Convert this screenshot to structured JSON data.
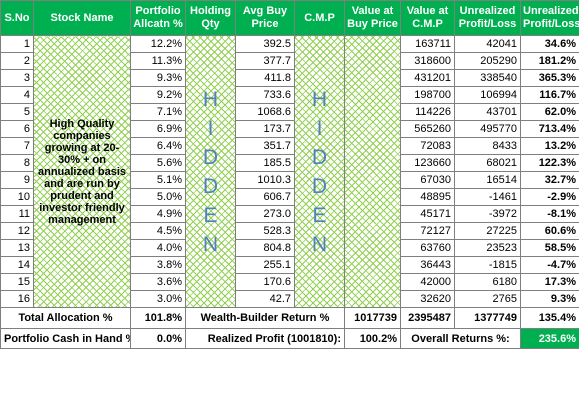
{
  "headers": {
    "sno": "S.No",
    "stock_name": "Stock Name",
    "portfolio_alloc": "Portfolio Allcatn %",
    "holding_qty": "Holding Qty",
    "avg_buy_price": "Avg Buy Price",
    "cmp": "C.M.P",
    "value_buy": "Value at Buy Price",
    "value_cmp": "Value at C.M.P",
    "unrealized_pl": "Unrealized Profit/Loss",
    "unrealized_pl_pct": "Unrealized Profit/Loss"
  },
  "description": "High Quality companies growing at 20-30% + on annualized basis and are run by prudent and investor friendly management",
  "hidden_word": [
    "H",
    "I",
    "D",
    "D",
    "E",
    "N"
  ],
  "rows": [
    {
      "sno": "1",
      "alloc": "12.2%",
      "avg": "392.5",
      "vcmp": "163711",
      "pl": "42041",
      "plpct": "34.6%",
      "sign": "pos"
    },
    {
      "sno": "2",
      "alloc": "11.3%",
      "avg": "377.7",
      "vcmp": "318600",
      "pl": "205290",
      "plpct": "181.2%",
      "sign": "pos"
    },
    {
      "sno": "3",
      "alloc": "9.3%",
      "avg": "411.8",
      "vcmp": "431201",
      "pl": "338540",
      "plpct": "365.3%",
      "sign": "pos"
    },
    {
      "sno": "4",
      "alloc": "9.2%",
      "avg": "733.6",
      "vcmp": "198700",
      "pl": "106994",
      "plpct": "116.7%",
      "sign": "pos"
    },
    {
      "sno": "5",
      "alloc": "7.1%",
      "avg": "1068.6",
      "vcmp": "114226",
      "pl": "43701",
      "plpct": "62.0%",
      "sign": "pos"
    },
    {
      "sno": "6",
      "alloc": "6.9%",
      "avg": "173.7",
      "vcmp": "565260",
      "pl": "495770",
      "plpct": "713.4%",
      "sign": "pos"
    },
    {
      "sno": "7",
      "alloc": "6.4%",
      "avg": "351.7",
      "vcmp": "72083",
      "pl": "8433",
      "plpct": "13.2%",
      "sign": "pos"
    },
    {
      "sno": "8",
      "alloc": "5.6%",
      "avg": "185.5",
      "vcmp": "123660",
      "pl": "68021",
      "plpct": "122.3%",
      "sign": "pos"
    },
    {
      "sno": "9",
      "alloc": "5.1%",
      "avg": "1010.3",
      "vcmp": "67030",
      "pl": "16514",
      "plpct": "32.7%",
      "sign": "pos"
    },
    {
      "sno": "10",
      "alloc": "5.0%",
      "avg": "606.7",
      "vcmp": "48895",
      "pl": "-1461",
      "plpct": "-2.9%",
      "sign": "neg"
    },
    {
      "sno": "11",
      "alloc": "4.9%",
      "avg": "273.0",
      "vcmp": "45171",
      "pl": "-3972",
      "plpct": "-8.1%",
      "sign": "neg"
    },
    {
      "sno": "12",
      "alloc": "4.5%",
      "avg": "528.3",
      "vcmp": "72127",
      "pl": "27225",
      "plpct": "60.6%",
      "sign": "pos"
    },
    {
      "sno": "13",
      "alloc": "4.0%",
      "avg": "804.8",
      "vcmp": "63760",
      "pl": "23523",
      "plpct": "58.5%",
      "sign": "pos"
    },
    {
      "sno": "14",
      "alloc": "3.8%",
      "avg": "255.1",
      "vcmp": "36443",
      "pl": "-1815",
      "plpct": "-4.7%",
      "sign": "neg"
    },
    {
      "sno": "15",
      "alloc": "3.6%",
      "avg": "170.6",
      "vcmp": "42000",
      "pl": "6180",
      "plpct": "17.3%",
      "sign": "pos"
    },
    {
      "sno": "16",
      "alloc": "3.0%",
      "avg": "42.7",
      "vcmp": "32620",
      "pl": "2765",
      "plpct": "9.3%",
      "sign": "pos"
    }
  ],
  "totals": {
    "label": "Total Allocation %",
    "alloc": "101.8%",
    "wb_label": "Wealth-Builder Return %",
    "vbuy": "1017739",
    "vcmp": "2395487",
    "pl": "1377749",
    "plpct": "135.4%"
  },
  "footer": {
    "cash_label": "Portfolio Cash in Hand %:",
    "cash_value": "0.0%",
    "realized_label": "Realized Profit (1001810):",
    "realized_value": "100.2%",
    "overall_label": "Overall Returns %:",
    "overall_value": "235.6%"
  },
  "colors": {
    "header_bg": "#00b050",
    "hatch": "#92d050",
    "positive": "#00b050",
    "negative": "#ff0000",
    "description": "#c00000",
    "hidden_text": "#4f81bd"
  }
}
